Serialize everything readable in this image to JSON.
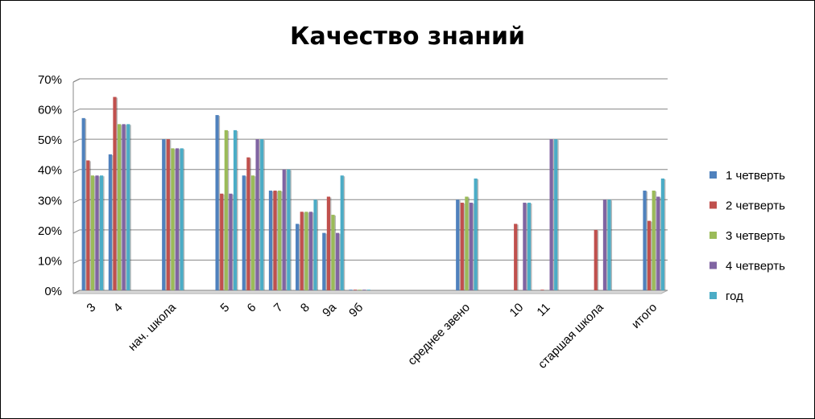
{
  "chart_data": {
    "type": "bar",
    "title": "Качество знаний",
    "xlabel": "",
    "ylabel": "",
    "ylim": [
      0,
      70
    ],
    "y_ticks": [
      "0%",
      "10%",
      "20%",
      "30%",
      "40%",
      "50%",
      "60%",
      "70%"
    ],
    "grid": true,
    "legend_position": "right",
    "categories": [
      "3",
      "4",
      "",
      "нач. школа",
      "",
      "5",
      "6",
      "7",
      "8",
      "9а",
      "9б",
      "",
      "",
      "",
      "среднее звено",
      "",
      "10",
      "11",
      "",
      "старшая школа",
      "",
      "итого"
    ],
    "series": [
      {
        "name": "1 четверть",
        "color": "#4F81BD",
        "values": [
          57,
          45,
          null,
          50,
          null,
          58,
          38,
          33,
          22,
          19,
          0,
          null,
          null,
          null,
          30,
          null,
          null,
          null,
          null,
          null,
          null,
          33
        ]
      },
      {
        "name": "2 четверть",
        "color": "#C0504D",
        "values": [
          43,
          64,
          null,
          50,
          null,
          32,
          44,
          33,
          26,
          31,
          0,
          null,
          null,
          null,
          29,
          null,
          22,
          0,
          null,
          20,
          null,
          23
        ]
      },
      {
        "name": "3 четверть",
        "color": "#9BBB59",
        "values": [
          38,
          55,
          null,
          47,
          null,
          53,
          38,
          33,
          26,
          25,
          0,
          null,
          null,
          null,
          31,
          null,
          null,
          null,
          null,
          null,
          null,
          33
        ]
      },
      {
        "name": "4 четверть",
        "color": "#8064A2",
        "values": [
          38,
          55,
          null,
          47,
          null,
          32,
          50,
          40,
          26,
          19,
          0,
          null,
          null,
          null,
          29,
          null,
          29,
          50,
          null,
          30,
          null,
          31
        ]
      },
      {
        "name": "год",
        "color": "#4BACC6",
        "values": [
          38,
          55,
          null,
          47,
          null,
          53,
          50,
          40,
          30,
          38,
          0,
          null,
          null,
          null,
          37,
          null,
          29,
          50,
          null,
          30,
          null,
          37
        ]
      }
    ]
  }
}
